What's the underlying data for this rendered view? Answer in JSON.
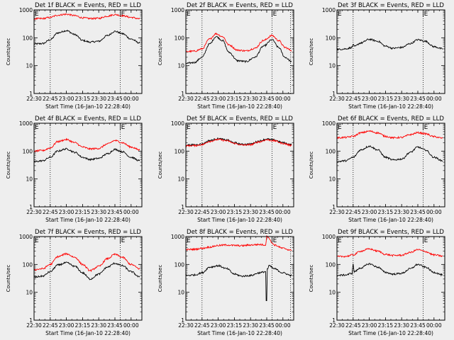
{
  "page": {
    "ylabel": "Counts/sec",
    "xlabel": "Start Time (16-Jan-10 22:28:40)",
    "marker_label": "E",
    "colors": {
      "background": "#eeeeee",
      "events": "#000000",
      "lld": "#ff0000",
      "axes": "#000000"
    }
  },
  "chart_data": [
    {
      "type": "line",
      "title": "Det 1f BLACK = Events, RED = LLD",
      "xlabel": "Start Time (16-Jan-10 22:28:40)",
      "ylabel": "Counts/sec",
      "y_scale": "log",
      "ylim": [
        1,
        1000
      ],
      "y_ticks": [
        "1",
        "10",
        "100",
        "1000"
      ],
      "x_ticks": [
        "22:30",
        "22:45",
        "23:00",
        "23:15",
        "23:30",
        "23:45",
        "00:00"
      ],
      "x_tick_minutes": [
        0,
        15,
        30,
        45,
        60,
        75,
        90
      ],
      "xlim_minutes": [
        0,
        100
      ],
      "markers": [
        {
          "label": "E",
          "x_minutes": 0
        },
        {
          "label": "E",
          "x_minutes": 80
        }
      ],
      "dotted_lines_minutes": [
        15,
        80
      ],
      "series": [
        {
          "name": "Events",
          "color": "#000000",
          "x_minutes": [
            0,
            8,
            15,
            22,
            30,
            38,
            45,
            52,
            60,
            68,
            75,
            82,
            90,
            98
          ],
          "values": [
            60,
            62,
            85,
            150,
            180,
            130,
            80,
            70,
            75,
            120,
            170,
            140,
            90,
            65
          ]
        },
        {
          "name": "LLD",
          "color": "#ff0000",
          "x_minutes": [
            0,
            8,
            15,
            22,
            30,
            38,
            45,
            52,
            60,
            68,
            75,
            82,
            90,
            98
          ],
          "values": [
            480,
            490,
            540,
            650,
            700,
            620,
            520,
            490,
            500,
            600,
            680,
            620,
            540,
            480
          ]
        }
      ]
    },
    {
      "type": "line",
      "title": "Det 2f BLACK = Events, RED = LLD",
      "xlabel": "Start Time (16-Jan-10 22:28:40)",
      "ylabel": "Counts/sec",
      "y_scale": "log",
      "ylim": [
        1,
        1000
      ],
      "y_ticks": [
        "1",
        "10",
        "100",
        "1000"
      ],
      "x_ticks": [
        "22:30",
        "22:45",
        "23:00",
        "23:15",
        "23:30",
        "23:45",
        "00:00"
      ],
      "x_tick_minutes": [
        0,
        15,
        30,
        45,
        60,
        75,
        90
      ],
      "xlim_minutes": [
        0,
        100
      ],
      "markers": [
        {
          "label": "E",
          "x_minutes": 0
        },
        {
          "label": "E",
          "x_minutes": 80
        }
      ],
      "dotted_lines_minutes": [
        15,
        80,
        97
      ],
      "series": [
        {
          "name": "Events",
          "color": "#000000",
          "x_minutes": [
            0,
            8,
            15,
            22,
            28,
            34,
            40,
            48,
            56,
            64,
            72,
            80,
            86,
            92,
            98
          ],
          "values": [
            12,
            13,
            20,
            60,
            110,
            80,
            30,
            15,
            14,
            20,
            50,
            85,
            45,
            20,
            14
          ]
        },
        {
          "name": "LLD",
          "color": "#ff0000",
          "x_minutes": [
            0,
            8,
            15,
            22,
            28,
            34,
            40,
            48,
            56,
            64,
            72,
            80,
            86,
            92,
            98
          ],
          "values": [
            32,
            33,
            40,
            90,
            140,
            110,
            55,
            36,
            34,
            42,
            80,
            120,
            80,
            45,
            35
          ]
        }
      ]
    },
    {
      "type": "line",
      "title": "Det 3f BLACK = Events, RED = LLD",
      "xlabel": "Start Time (16-Jan-10 22:28:40)",
      "ylabel": "Counts/sec",
      "y_scale": "log",
      "ylim": [
        1,
        1000
      ],
      "y_ticks": [
        "1",
        "10",
        "100",
        "1000"
      ],
      "x_ticks": [
        "22:30",
        "22:45",
        "23:00",
        "23:15",
        "23:30",
        "23:45",
        "00:00"
      ],
      "x_tick_minutes": [
        0,
        15,
        30,
        45,
        60,
        75,
        90
      ],
      "xlim_minutes": [
        0,
        100
      ],
      "markers": [
        {
          "label": "E",
          "x_minutes": 0
        },
        {
          "label": "E",
          "x_minutes": 80
        }
      ],
      "dotted_lines_minutes": [
        15,
        80
      ],
      "series": [
        {
          "name": "Events",
          "color": "#000000",
          "x_minutes": [
            0,
            8,
            14,
            15,
            16,
            22,
            30,
            38,
            45,
            52,
            60,
            68,
            75,
            82,
            90,
            98
          ],
          "values": [
            38,
            40,
            45,
            60,
            48,
            65,
            88,
            75,
            50,
            42,
            45,
            62,
            85,
            75,
            48,
            40
          ]
        }
      ]
    },
    {
      "type": "line",
      "title": "Det 4f BLACK = Events, RED = LLD",
      "xlabel": "Start Time (16-Jan-10 22:28:40)",
      "ylabel": "Counts/sec",
      "y_scale": "log",
      "ylim": [
        1,
        1000
      ],
      "y_ticks": [
        "1",
        "10",
        "100",
        "1000"
      ],
      "x_ticks": [
        "22:30",
        "22:45",
        "23:00",
        "23:15",
        "23:30",
        "23:45",
        "00:00"
      ],
      "x_tick_minutes": [
        0,
        15,
        30,
        45,
        60,
        75,
        90
      ],
      "xlim_minutes": [
        0,
        100
      ],
      "markers": [
        {
          "label": "E",
          "x_minutes": 0
        },
        {
          "label": "E",
          "x_minutes": 80
        }
      ],
      "dotted_lines_minutes": [
        15,
        80
      ],
      "series": [
        {
          "name": "Events",
          "color": "#000000",
          "x_minutes": [
            0,
            8,
            15,
            22,
            30,
            38,
            45,
            52,
            60,
            68,
            75,
            82,
            90,
            98
          ],
          "values": [
            42,
            45,
            60,
            100,
            120,
            90,
            60,
            50,
            55,
            80,
            115,
            95,
            60,
            45
          ]
        },
        {
          "name": "LLD",
          "color": "#ff0000",
          "x_minutes": [
            0,
            8,
            15,
            22,
            30,
            38,
            45,
            52,
            60,
            68,
            75,
            82,
            90,
            98
          ],
          "values": [
            100,
            105,
            130,
            220,
            260,
            200,
            140,
            120,
            125,
            180,
            240,
            200,
            140,
            110
          ]
        }
      ]
    },
    {
      "type": "line",
      "title": "Det 5f BLACK = Events, RED = LLD",
      "xlabel": "Start Time (16-Jan-10 22:28:40)",
      "ylabel": "Counts/sec",
      "y_scale": "log",
      "ylim": [
        1,
        1000
      ],
      "y_ticks": [
        "1",
        "10",
        "100",
        "1000"
      ],
      "x_ticks": [
        "22:30",
        "22:45",
        "23:00",
        "23:15",
        "23:30",
        "23:45",
        "00:00"
      ],
      "x_tick_minutes": [
        0,
        15,
        30,
        45,
        60,
        75,
        90
      ],
      "xlim_minutes": [
        0,
        100
      ],
      "markers": [
        {
          "label": "E",
          "x_minutes": 0
        },
        {
          "label": "E",
          "x_minutes": 80
        }
      ],
      "dotted_lines_minutes": [
        15,
        80
      ],
      "series": [
        {
          "name": "Events",
          "color": "#000000",
          "x_minutes": [
            0,
            8,
            15,
            22,
            30,
            38,
            45,
            52,
            60,
            68,
            75,
            82,
            90,
            98
          ],
          "values": [
            165,
            168,
            180,
            240,
            280,
            250,
            200,
            175,
            180,
            230,
            270,
            250,
            200,
            170
          ]
        },
        {
          "name": "LLD",
          "color": "#ff0000",
          "x_minutes": [
            0,
            8,
            15,
            22,
            30,
            38,
            45,
            52,
            60,
            68,
            75,
            82,
            90,
            98
          ],
          "values": [
            155,
            158,
            170,
            225,
            260,
            235,
            190,
            165,
            170,
            215,
            255,
            235,
            190,
            160
          ]
        }
      ]
    },
    {
      "type": "line",
      "title": "Det 6f BLACK = Events, RED = LLD",
      "xlabel": "Start Time (16-Jan-10 22:28:40)",
      "ylabel": "Counts/sec",
      "y_scale": "log",
      "ylim": [
        1,
        1000
      ],
      "y_ticks": [
        "1",
        "10",
        "100",
        "1000"
      ],
      "x_ticks": [
        "22:30",
        "22:45",
        "23:00",
        "23:15",
        "23:30",
        "23:45",
        "00:00"
      ],
      "x_tick_minutes": [
        0,
        15,
        30,
        45,
        60,
        75,
        90
      ],
      "xlim_minutes": [
        0,
        100
      ],
      "markers": [
        {
          "label": "E",
          "x_minutes": 0
        },
        {
          "label": "E",
          "x_minutes": 80
        }
      ],
      "dotted_lines_minutes": [
        15,
        80
      ],
      "series": [
        {
          "name": "Events",
          "color": "#000000",
          "x_minutes": [
            0,
            8,
            15,
            22,
            30,
            38,
            45,
            52,
            60,
            68,
            75,
            82,
            90,
            98
          ],
          "values": [
            42,
            45,
            60,
            110,
            150,
            110,
            60,
            48,
            52,
            90,
            140,
            110,
            60,
            45
          ]
        },
        {
          "name": "LLD",
          "color": "#ff0000",
          "x_minutes": [
            0,
            8,
            15,
            22,
            30,
            38,
            45,
            52,
            60,
            68,
            75,
            82,
            90,
            98
          ],
          "values": [
            300,
            310,
            340,
            450,
            520,
            450,
            340,
            300,
            310,
            390,
            460,
            420,
            330,
            290
          ]
        }
      ]
    },
    {
      "type": "line",
      "title": "Det 7f BLACK = Events, RED = LLD",
      "xlabel": "Start Time (16-Jan-10 22:28:40)",
      "ylabel": "Counts/sec",
      "y_scale": "log",
      "ylim": [
        1,
        1000
      ],
      "y_ticks": [
        "1",
        "10",
        "100",
        "1000"
      ],
      "x_ticks": [
        "22:30",
        "22:45",
        "23:00",
        "23:15",
        "23:30",
        "23:45",
        "00:00"
      ],
      "x_tick_minutes": [
        0,
        15,
        30,
        45,
        60,
        75,
        90
      ],
      "xlim_minutes": [
        0,
        100
      ],
      "markers": [
        {
          "label": "E",
          "x_minutes": 0
        },
        {
          "label": "E",
          "x_minutes": 80
        }
      ],
      "dotted_lines_minutes": [
        15,
        80
      ],
      "series": [
        {
          "name": "Events",
          "color": "#000000",
          "x_minutes": [
            0,
            8,
            15,
            22,
            30,
            38,
            45,
            52,
            60,
            68,
            75,
            82,
            90,
            98
          ],
          "values": [
            35,
            38,
            55,
            95,
            115,
            85,
            50,
            30,
            45,
            80,
            110,
            90,
            55,
            35
          ]
        },
        {
          "name": "LLD",
          "color": "#ff0000",
          "x_minutes": [
            0,
            8,
            15,
            22,
            30,
            38,
            45,
            52,
            60,
            68,
            75,
            82,
            90,
            98
          ],
          "values": [
            65,
            70,
            100,
            190,
            240,
            180,
            100,
            60,
            85,
            160,
            230,
            180,
            100,
            70
          ]
        }
      ]
    },
    {
      "type": "line",
      "title": "Det 8f BLACK = Events, RED = LLD",
      "xlabel": "Start Time (16-Jan-10 22:28:40)",
      "ylabel": "Counts/sec",
      "y_scale": "log",
      "ylim": [
        1,
        1000
      ],
      "y_ticks": [
        "1",
        "10",
        "100",
        "1000"
      ],
      "x_ticks": [
        "22:30",
        "22:45",
        "23:00",
        "23:15",
        "23:30",
        "23:45",
        "00:00"
      ],
      "x_tick_minutes": [
        0,
        15,
        30,
        45,
        60,
        75,
        90
      ],
      "xlim_minutes": [
        0,
        100
      ],
      "markers": [
        {
          "label": "E",
          "x_minutes": 0
        },
        {
          "label": "E",
          "x_minutes": 80
        }
      ],
      "dotted_lines_minutes": [
        15,
        80,
        97
      ],
      "series": [
        {
          "name": "Events",
          "color": "#000000",
          "x_minutes": [
            0,
            8,
            15,
            22,
            30,
            38,
            45,
            52,
            60,
            68,
            74,
            75,
            76,
            77,
            82,
            90,
            98
          ],
          "values": [
            40,
            42,
            50,
            80,
            90,
            70,
            45,
            38,
            40,
            50,
            55,
            5,
            70,
            90,
            70,
            50,
            40
          ]
        },
        {
          "name": "LLD",
          "color": "#ff0000",
          "x_minutes": [
            0,
            8,
            15,
            22,
            30,
            38,
            45,
            52,
            60,
            68,
            74,
            75,
            76,
            80,
            82,
            90,
            98
          ],
          "values": [
            340,
            350,
            380,
            420,
            480,
            500,
            480,
            470,
            500,
            520,
            500,
            1000,
            1000,
            600,
            500,
            380,
            320
          ]
        }
      ]
    },
    {
      "type": "line",
      "title": "Det 9f BLACK = Events, RED = LLD",
      "xlabel": "Start Time (16-Jan-10 22:28:40)",
      "ylabel": "Counts/sec",
      "y_scale": "log",
      "ylim": [
        1,
        1000
      ],
      "y_ticks": [
        "1",
        "10",
        "100",
        "1000"
      ],
      "x_ticks": [
        "22:30",
        "22:45",
        "23:00",
        "23:15",
        "23:30",
        "23:45",
        "00:00"
      ],
      "x_tick_minutes": [
        0,
        15,
        30,
        45,
        60,
        75,
        90
      ],
      "xlim_minutes": [
        0,
        100
      ],
      "markers": [
        {
          "label": "E",
          "x_minutes": 0
        },
        {
          "label": "E",
          "x_minutes": 80
        }
      ],
      "dotted_lines_minutes": [
        15,
        80
      ],
      "series": [
        {
          "name": "Events",
          "color": "#000000",
          "x_minutes": [
            0,
            8,
            14,
            15,
            16,
            22,
            30,
            38,
            45,
            52,
            60,
            68,
            75,
            82,
            90,
            98
          ],
          "values": [
            40,
            42,
            48,
            100,
            55,
            75,
            105,
            80,
            52,
            45,
            48,
            70,
            100,
            80,
            52,
            42
          ]
        },
        {
          "name": "LLD",
          "color": "#ff0000",
          "x_minutes": [
            0,
            8,
            15,
            22,
            30,
            38,
            45,
            52,
            60,
            68,
            75,
            82,
            90,
            98
          ],
          "values": [
            190,
            195,
            220,
            300,
            360,
            300,
            230,
            210,
            215,
            270,
            340,
            290,
            220,
            200
          ]
        }
      ]
    }
  ]
}
